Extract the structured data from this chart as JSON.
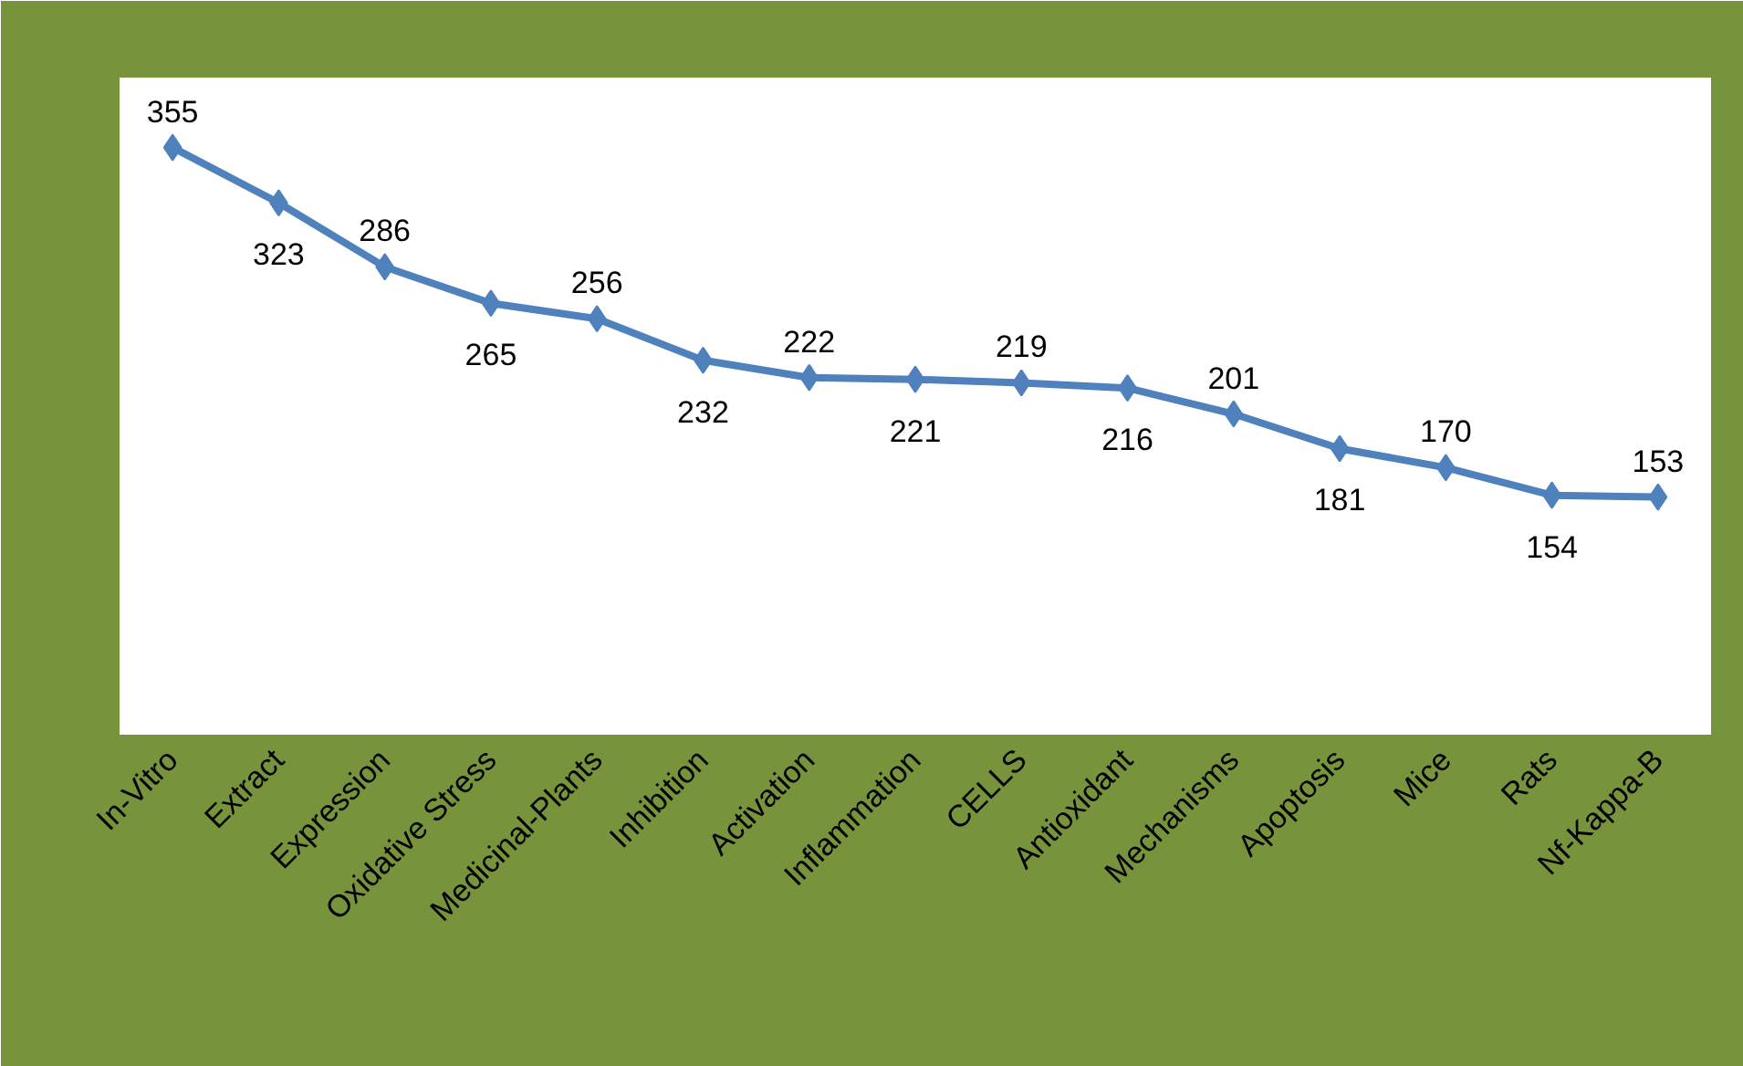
{
  "chart_data": {
    "type": "line",
    "categories": [
      "In-Vitro",
      "Extract",
      "Expression",
      "Oxidative Stress",
      "Medicinal-Plants",
      "Inhibition",
      "Activation",
      "Inflammation",
      "CELLS",
      "Antioxidant",
      "Mechanisms",
      "Apoptosis",
      "Mice",
      "Rats",
      "Nf-Kappa-B"
    ],
    "series": [
      {
        "color": "#4f81bd",
        "values": [
          355,
          323,
          286,
          265,
          256,
          232,
          222,
          221,
          219,
          216,
          201,
          181,
          170,
          154,
          153
        ]
      }
    ],
    "tick_labels": "x",
    "marker": "diamond",
    "data_labels": true,
    "grid": false
  }
}
